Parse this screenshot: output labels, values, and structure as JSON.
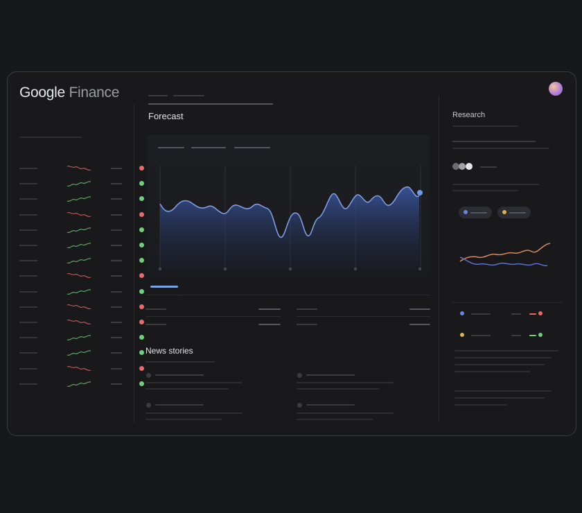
{
  "app": {
    "logo_brand": "Google",
    "logo_product": "Finance"
  },
  "main": {
    "forecast_title": "Forecast",
    "news_title": "News stories"
  },
  "research": {
    "title": "Research"
  },
  "watchlist": {
    "rows": [
      {
        "trend": "down",
        "status": "red"
      },
      {
        "trend": "up",
        "status": "green"
      },
      {
        "trend": "up",
        "status": "green"
      },
      {
        "trend": "down",
        "status": "red"
      },
      {
        "trend": "up",
        "status": "green"
      },
      {
        "trend": "up",
        "status": "green"
      },
      {
        "trend": "up",
        "status": "green"
      },
      {
        "trend": "down",
        "status": "red"
      },
      {
        "trend": "up",
        "status": "green"
      },
      {
        "trend": "down",
        "status": "red"
      },
      {
        "trend": "down",
        "status": "red"
      },
      {
        "trend": "up",
        "status": "green"
      },
      {
        "trend": "up",
        "status": "green"
      },
      {
        "trend": "down",
        "status": "red"
      },
      {
        "trend": "up",
        "status": "green"
      }
    ]
  },
  "colors": {
    "accent_blue": "#7aa6e6",
    "positive": "#6fcf7a",
    "negative": "#e86a6a",
    "series_orange": "#d98a5c",
    "series_blue": "#5b6fd0",
    "legend_yellow": "#e0b050"
  },
  "icons": [
    "avatar",
    "theme-toggle-icon",
    "news-source-icon"
  ]
}
